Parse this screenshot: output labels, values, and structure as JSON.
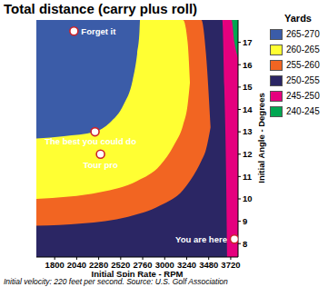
{
  "chart_data": {
    "type": "contour",
    "title": "Total distance (carry plus roll)",
    "footnote": "Initial velocity: 220 feet per second. Source: U.S. Golf Association",
    "x_label": "Initial Spin Rate - RPM",
    "y_label": "Initial Angle - Degrees",
    "legend_title": "Yards",
    "legend": "right",
    "grid": false,
    "xlim": [
      1600,
      3800
    ],
    "ylim": [
      7.4,
      18
    ],
    "xticks": [
      1800,
      2040,
      2280,
      2520,
      2760,
      3000,
      3240,
      3480,
      3720
    ],
    "yticks": [
      8,
      9,
      10,
      11,
      12,
      13,
      14,
      15,
      16,
      17
    ],
    "series": [
      {
        "name": "265-270",
        "color": "#3b5ca8",
        "x": [
          1600,
          1900,
          2240,
          2400,
          2550,
          2650,
          2700,
          2725,
          2730
        ],
        "low": [
          12.7,
          12.8,
          13,
          13.4,
          14.2,
          15.3,
          16.5,
          17.5,
          18
        ],
        "high": [
          18,
          18,
          18,
          18,
          18,
          18,
          18,
          18,
          18
        ]
      },
      {
        "name": "260-265",
        "color": "#ffff33",
        "x": [
          1600,
          2300,
          2700,
          2950,
          3100,
          3200,
          3250,
          3275
        ],
        "low": [
          10,
          10.3,
          10.8,
          11.5,
          12.4,
          13.3,
          14.2,
          15.2
        ],
        "high": [
          18,
          18,
          18,
          18,
          18,
          18,
          17,
          15.2
        ]
      },
      {
        "name": "255-260",
        "color": "#f26522",
        "x": [
          1600,
          2100,
          2600,
          2950,
          3200,
          3350,
          3400,
          3450,
          3500
        ],
        "low": [
          8.8,
          8.9,
          9.2,
          9.7,
          10.4,
          11.3,
          11.7,
          12.2,
          13.2
        ],
        "high": [
          18,
          18,
          18,
          18,
          18,
          18,
          18,
          16.5,
          13.2
        ]
      },
      {
        "name": "250-255",
        "color": "#2b2664",
        "x": [
          1600,
          3628,
          3650,
          3670,
          3680
        ],
        "low": [
          7.4,
          7.4,
          7.4,
          7.4,
          7.4
        ],
        "high": [
          18,
          18,
          15,
          11,
          7.4
        ]
      },
      {
        "name": "245-250",
        "color": "#e5007e",
        "x": [
          1600,
          3729,
          3760,
          3800
        ],
        "low": [
          7.4,
          7.4,
          7.4,
          7.4
        ],
        "high": [
          18,
          18,
          17,
          16.3
        ]
      },
      {
        "name": "240-245",
        "color": "#00a651",
        "x": [
          1600,
          3800
        ],
        "low": [
          7.4,
          7.4
        ],
        "high": [
          18,
          18
        ]
      }
    ],
    "annotations": [
      {
        "text": "Forget it",
        "x": 2010,
        "y": 17.5
      },
      {
        "text": "The best you could do",
        "x": 2240,
        "y": 13
      },
      {
        "text": "Tour pro",
        "x": 2300,
        "y": 12
      },
      {
        "text": "You are here",
        "x": 3760,
        "y": 8.2
      }
    ]
  }
}
